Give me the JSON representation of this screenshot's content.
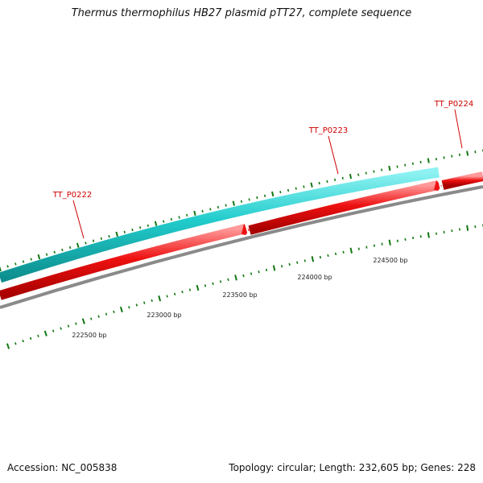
{
  "title": "Thermus thermophilus HB27 plasmid pTT27, complete sequence",
  "footer": {
    "accession": "Accession: NC_005838",
    "stats": "Topology: circular; Length: 232,605 bp; Genes: 228"
  },
  "colors": {
    "forward_gene": "#22cccc",
    "reverse_gene": "#ee1111",
    "backbone": "#888888",
    "tick": "#117711",
    "gene_label": "#cc0000"
  },
  "gene_labels": [
    {
      "name": "TT_P0222",
      "strand": "forward"
    },
    {
      "name": "TT_P0223",
      "strand": "forward"
    },
    {
      "name": "TT_P0224",
      "strand": "reverse"
    }
  ],
  "bp_ticks": [
    "222500 bp",
    "223000 bp",
    "223500 bp",
    "224000 bp",
    "224500 bp"
  ]
}
